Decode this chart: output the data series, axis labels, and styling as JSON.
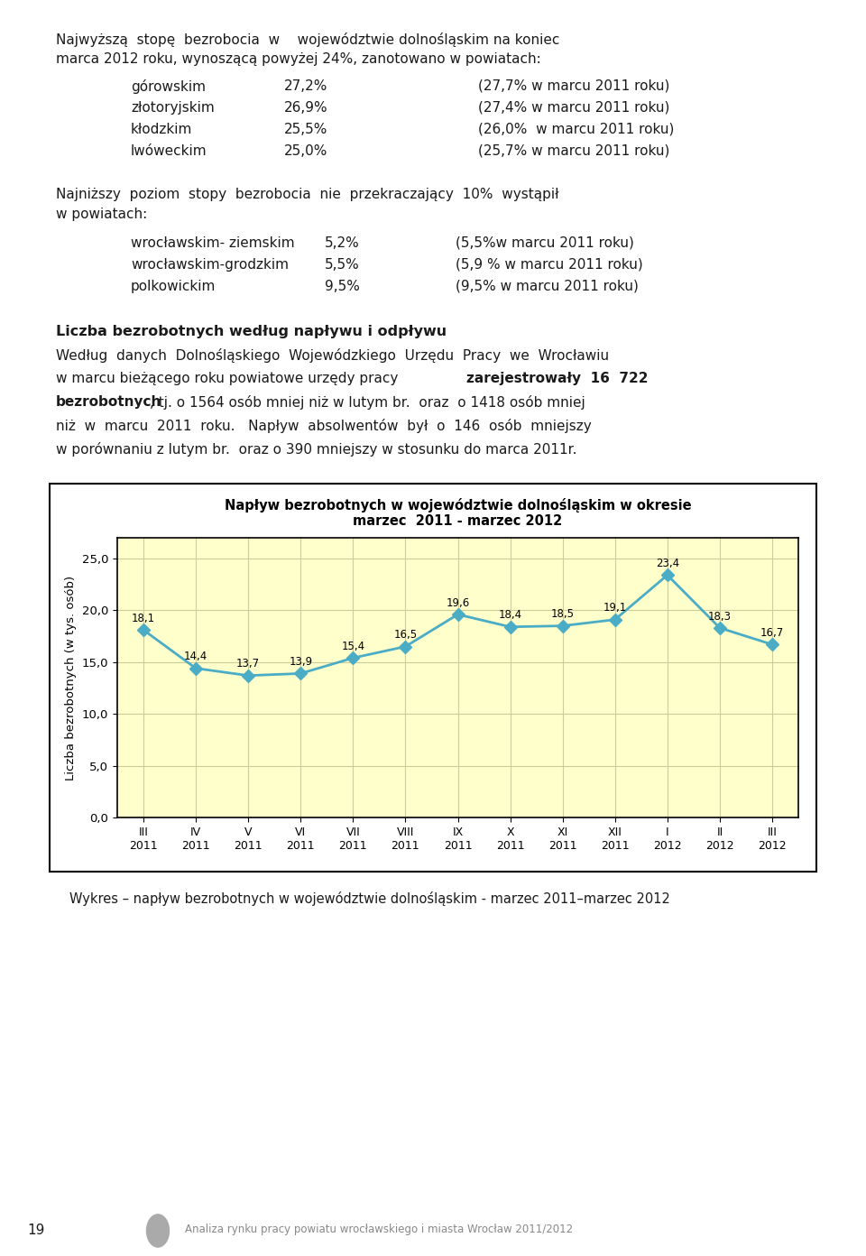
{
  "page_bg": "#ffffff",
  "text_color": "#1a1a1a",
  "gray_text": "#777777",
  "chart_title_line1": "Napływ bezrobotnych w województwie dolnośląskim w okresie",
  "chart_title_line2": "marzec  2011 - marzec 2012",
  "chart_ylabel": "Liczba bezrobotnych (w tys. osób)",
  "chart_xlabel_ticks": [
    "III\n2011",
    "IV\n2011",
    "V\n2011",
    "VI\n2011",
    "VII\n2011",
    "VIII\n2011",
    "IX\n2011",
    "X\n2011",
    "XI\n2011",
    "XII\n2011",
    "I\n2012",
    "II\n2012",
    "III\n2012"
  ],
  "chart_values": [
    18.1,
    14.4,
    13.7,
    13.9,
    15.4,
    16.5,
    19.6,
    18.4,
    18.5,
    19.1,
    23.4,
    18.3,
    16.7
  ],
  "chart_ylim_max": 27.0,
  "chart_yticks": [
    0.0,
    5.0,
    10.0,
    15.0,
    20.0,
    25.0
  ],
  "chart_ytick_labels": [
    "0,0",
    "5,0",
    "10,0",
    "15,0",
    "20,0",
    "25,0"
  ],
  "chart_line_color": "#4bacc6",
  "chart_marker_color": "#4bacc6",
  "chart_bg": "#ffffcc",
  "chart_border": "#000000",
  "chart_grid_color": "#cccc99",
  "caption": "Wykres – napływ bezrobotnych w województwie dolnośląskim - marzec 2011–marzec 2012",
  "footer_text": "Analiza rynku pracy powiatu wrocławskiego i miasta Wrocław 2011/2012",
  "footer_page": "19"
}
